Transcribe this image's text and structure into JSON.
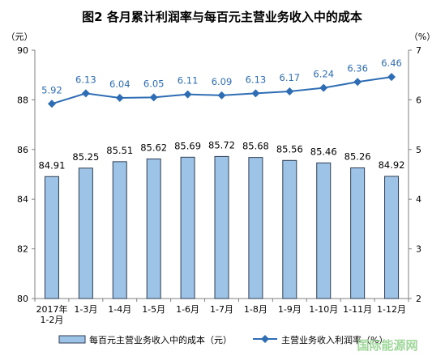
{
  "chart_data": {
    "type": "bar+line",
    "title": "图2  各月累计利润率与每百元主营业务收入中的成本",
    "left_unit": "（元）",
    "right_unit": "（%）",
    "categories": [
      "2017年\n1-2月",
      "1-3月",
      "1-4月",
      "1-5月",
      "1-6月",
      "1-7月",
      "1-8月",
      "1-9月",
      "1-10月",
      "1-11月",
      "1-12月"
    ],
    "series": [
      {
        "name": "每百元主营业务收入中的成本（元）",
        "type": "bar",
        "axis": "left",
        "values": [
          84.91,
          85.25,
          85.51,
          85.62,
          85.69,
          85.72,
          85.68,
          85.56,
          85.46,
          85.26,
          84.92
        ]
      },
      {
        "name": "主营业务收入利润率（%）",
        "type": "line",
        "axis": "right",
        "values": [
          5.92,
          6.13,
          6.04,
          6.05,
          6.11,
          6.09,
          6.13,
          6.17,
          6.24,
          6.36,
          6.46
        ]
      }
    ],
    "left_ylim": [
      80,
      90
    ],
    "left_ticks": [
      "80",
      "82",
      "84",
      "86",
      "88",
      "90"
    ],
    "right_ylim": [
      2,
      7
    ],
    "right_ticks": [
      "2",
      "3",
      "4",
      "5",
      "6",
      "7"
    ],
    "grid": false,
    "legend_position": "bottom",
    "colors": {
      "bar_fill": "#9dc3e6",
      "bar_stroke": "#2f3e55",
      "line": "#2e6db4",
      "line_label": "#2e6db4"
    }
  },
  "watermark": "国际能源网"
}
